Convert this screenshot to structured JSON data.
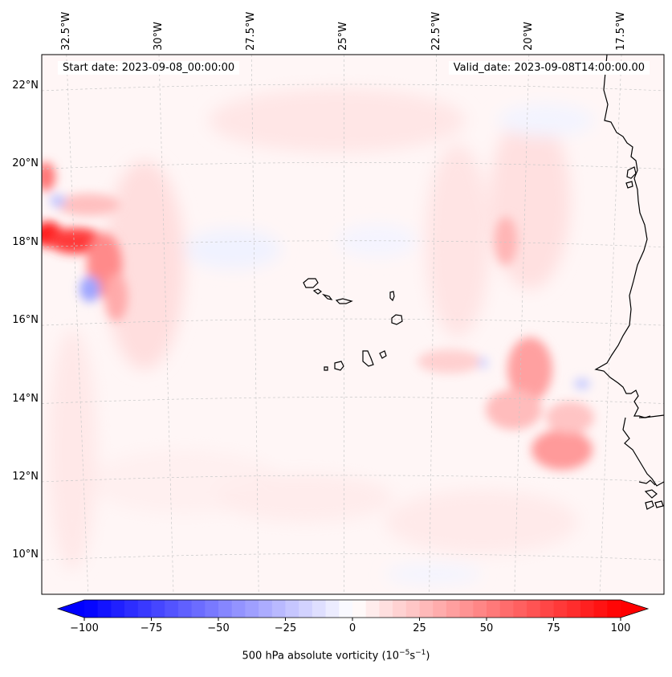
{
  "map": {
    "title_left": "Start date: 2023-09-08_00:00:00",
    "title_right": "Valid_date: 2023-09-08T14:00:00.00",
    "lon_labels": [
      "32.5°W",
      "30°W",
      "27.5°W",
      "25°W",
      "22.5°W",
      "20°W",
      "17.5°W"
    ],
    "lat_labels": [
      "22°N",
      "20°N",
      "18°N",
      "16°N",
      "14°N",
      "12°N",
      "10°N"
    ],
    "lon_values": [
      -32.5,
      -30,
      -27.5,
      -25,
      -22.5,
      -20,
      -17.5
    ],
    "lat_values": [
      22,
      20,
      18,
      16,
      14,
      12,
      10
    ],
    "extent": {
      "lon_min": -33.5,
      "lon_max": -16.0,
      "lat_min": 9.0,
      "lat_max": 22.8
    },
    "islands": [
      "Santo Antão",
      "São Vicente",
      "São Nicolau",
      "Sal",
      "Boa Vista",
      "Maio",
      "Santiago",
      "Fogo",
      "Brava"
    ],
    "features": [
      "Cape Verde islands",
      "West African coastline"
    ]
  },
  "colorbar": {
    "label_text": "500 hPa absolute vorticity (10",
    "label_exp1": "−5",
    "label_mid": "s",
    "label_exp2": "−1",
    "label_close": ")",
    "ticks": [
      "−100",
      "−75",
      "−50",
      "−25",
      "0",
      "25",
      "50",
      "75",
      "100"
    ],
    "tick_values": [
      -100,
      -75,
      -50,
      -25,
      0,
      25,
      50,
      75,
      100
    ],
    "min": -100,
    "max": 100,
    "step": 5,
    "colormap": "bwr",
    "color_low": "#0000ff",
    "color_mid": "#ffffff",
    "color_high": "#ff0000"
  },
  "chart_data": {
    "type": "heatmap",
    "variable": "500 hPa absolute vorticity",
    "units": "1e-5 s^-1",
    "vmin": -100,
    "vmax": 100,
    "features": [
      {
        "lon": -33.2,
        "lat": 18.1,
        "value": 95
      },
      {
        "lon": -31.8,
        "lat": 17.9,
        "value": 75
      },
      {
        "lon": -30.9,
        "lat": 17.5,
        "value": 45
      },
      {
        "lon": -33.2,
        "lat": 19.6,
        "value": 55
      },
      {
        "lon": -31.7,
        "lat": 16.8,
        "value": -40
      },
      {
        "lon": -32.5,
        "lat": 18.9,
        "value": -25
      },
      {
        "lon": -20.1,
        "lat": 17.7,
        "value": 30
      },
      {
        "lon": -19.6,
        "lat": 14.6,
        "value": 40
      },
      {
        "lon": -17.7,
        "lat": 12.3,
        "value": 35
      },
      {
        "lon": -19.0,
        "lat": 13.3,
        "value": 30
      },
      {
        "lon": -21.5,
        "lat": 15.1,
        "value": 25
      },
      {
        "lon": -16.9,
        "lat": 14.3,
        "value": -20
      },
      {
        "lon": -27.0,
        "lat": 17.2,
        "value": -8
      }
    ]
  }
}
